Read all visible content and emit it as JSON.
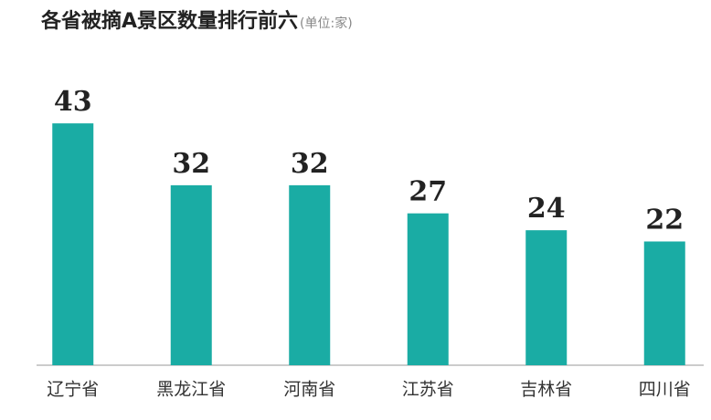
{
  "chart_data": {
    "type": "bar",
    "title": "各省被摘A景区数量排行前六",
    "subtitle": "(单位:家)",
    "categories": [
      "辽宁省",
      "黑龙江省",
      "河南省",
      "江苏省",
      "吉林省",
      "四川省"
    ],
    "values": [
      43,
      32,
      32,
      27,
      24,
      22
    ],
    "color": "#1aaca4"
  }
}
